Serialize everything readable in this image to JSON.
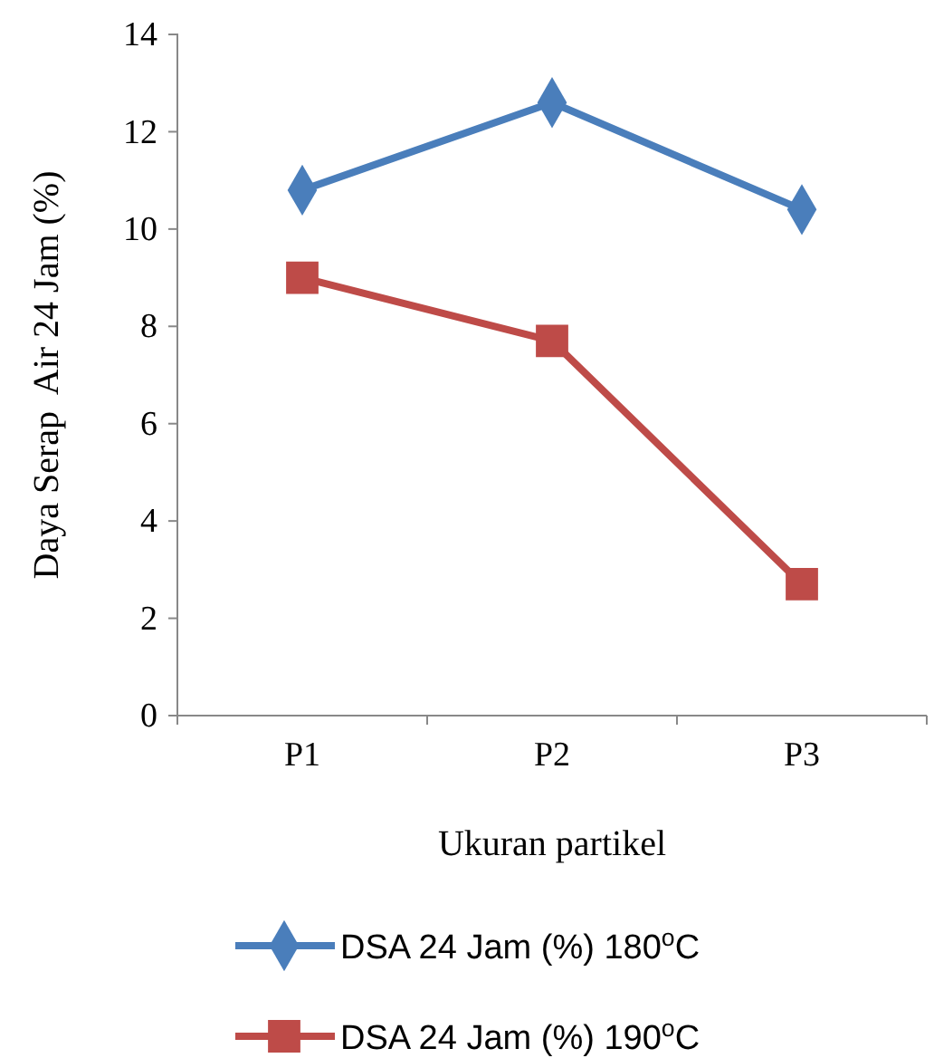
{
  "chart_data": {
    "type": "line",
    "xlabel": "Ukuran partikel",
    "ylabel": "Daya Serap  Air 24 Jam (%)",
    "categories": [
      "P1",
      "P2",
      "P3"
    ],
    "series": [
      {
        "name": "DSA 24 Jam (%) 180$^{o}$C",
        "color": "#4a7ebb",
        "values": [
          10.8,
          12.6,
          10.4
        ],
        "marker": "diamond"
      },
      {
        "name": "DSA 24 Jam (%) 190$^{o}$C",
        "color": "#be4b48",
        "values": [
          9.0,
          7.7,
          2.7
        ],
        "marker": "square"
      }
    ],
    "ylim": [
      0,
      14
    ],
    "yticks": [
      0,
      2,
      4,
      6,
      8,
      10,
      12,
      14
    ],
    "grid": false,
    "legend": "bottom",
    "line_style": "solid"
  }
}
